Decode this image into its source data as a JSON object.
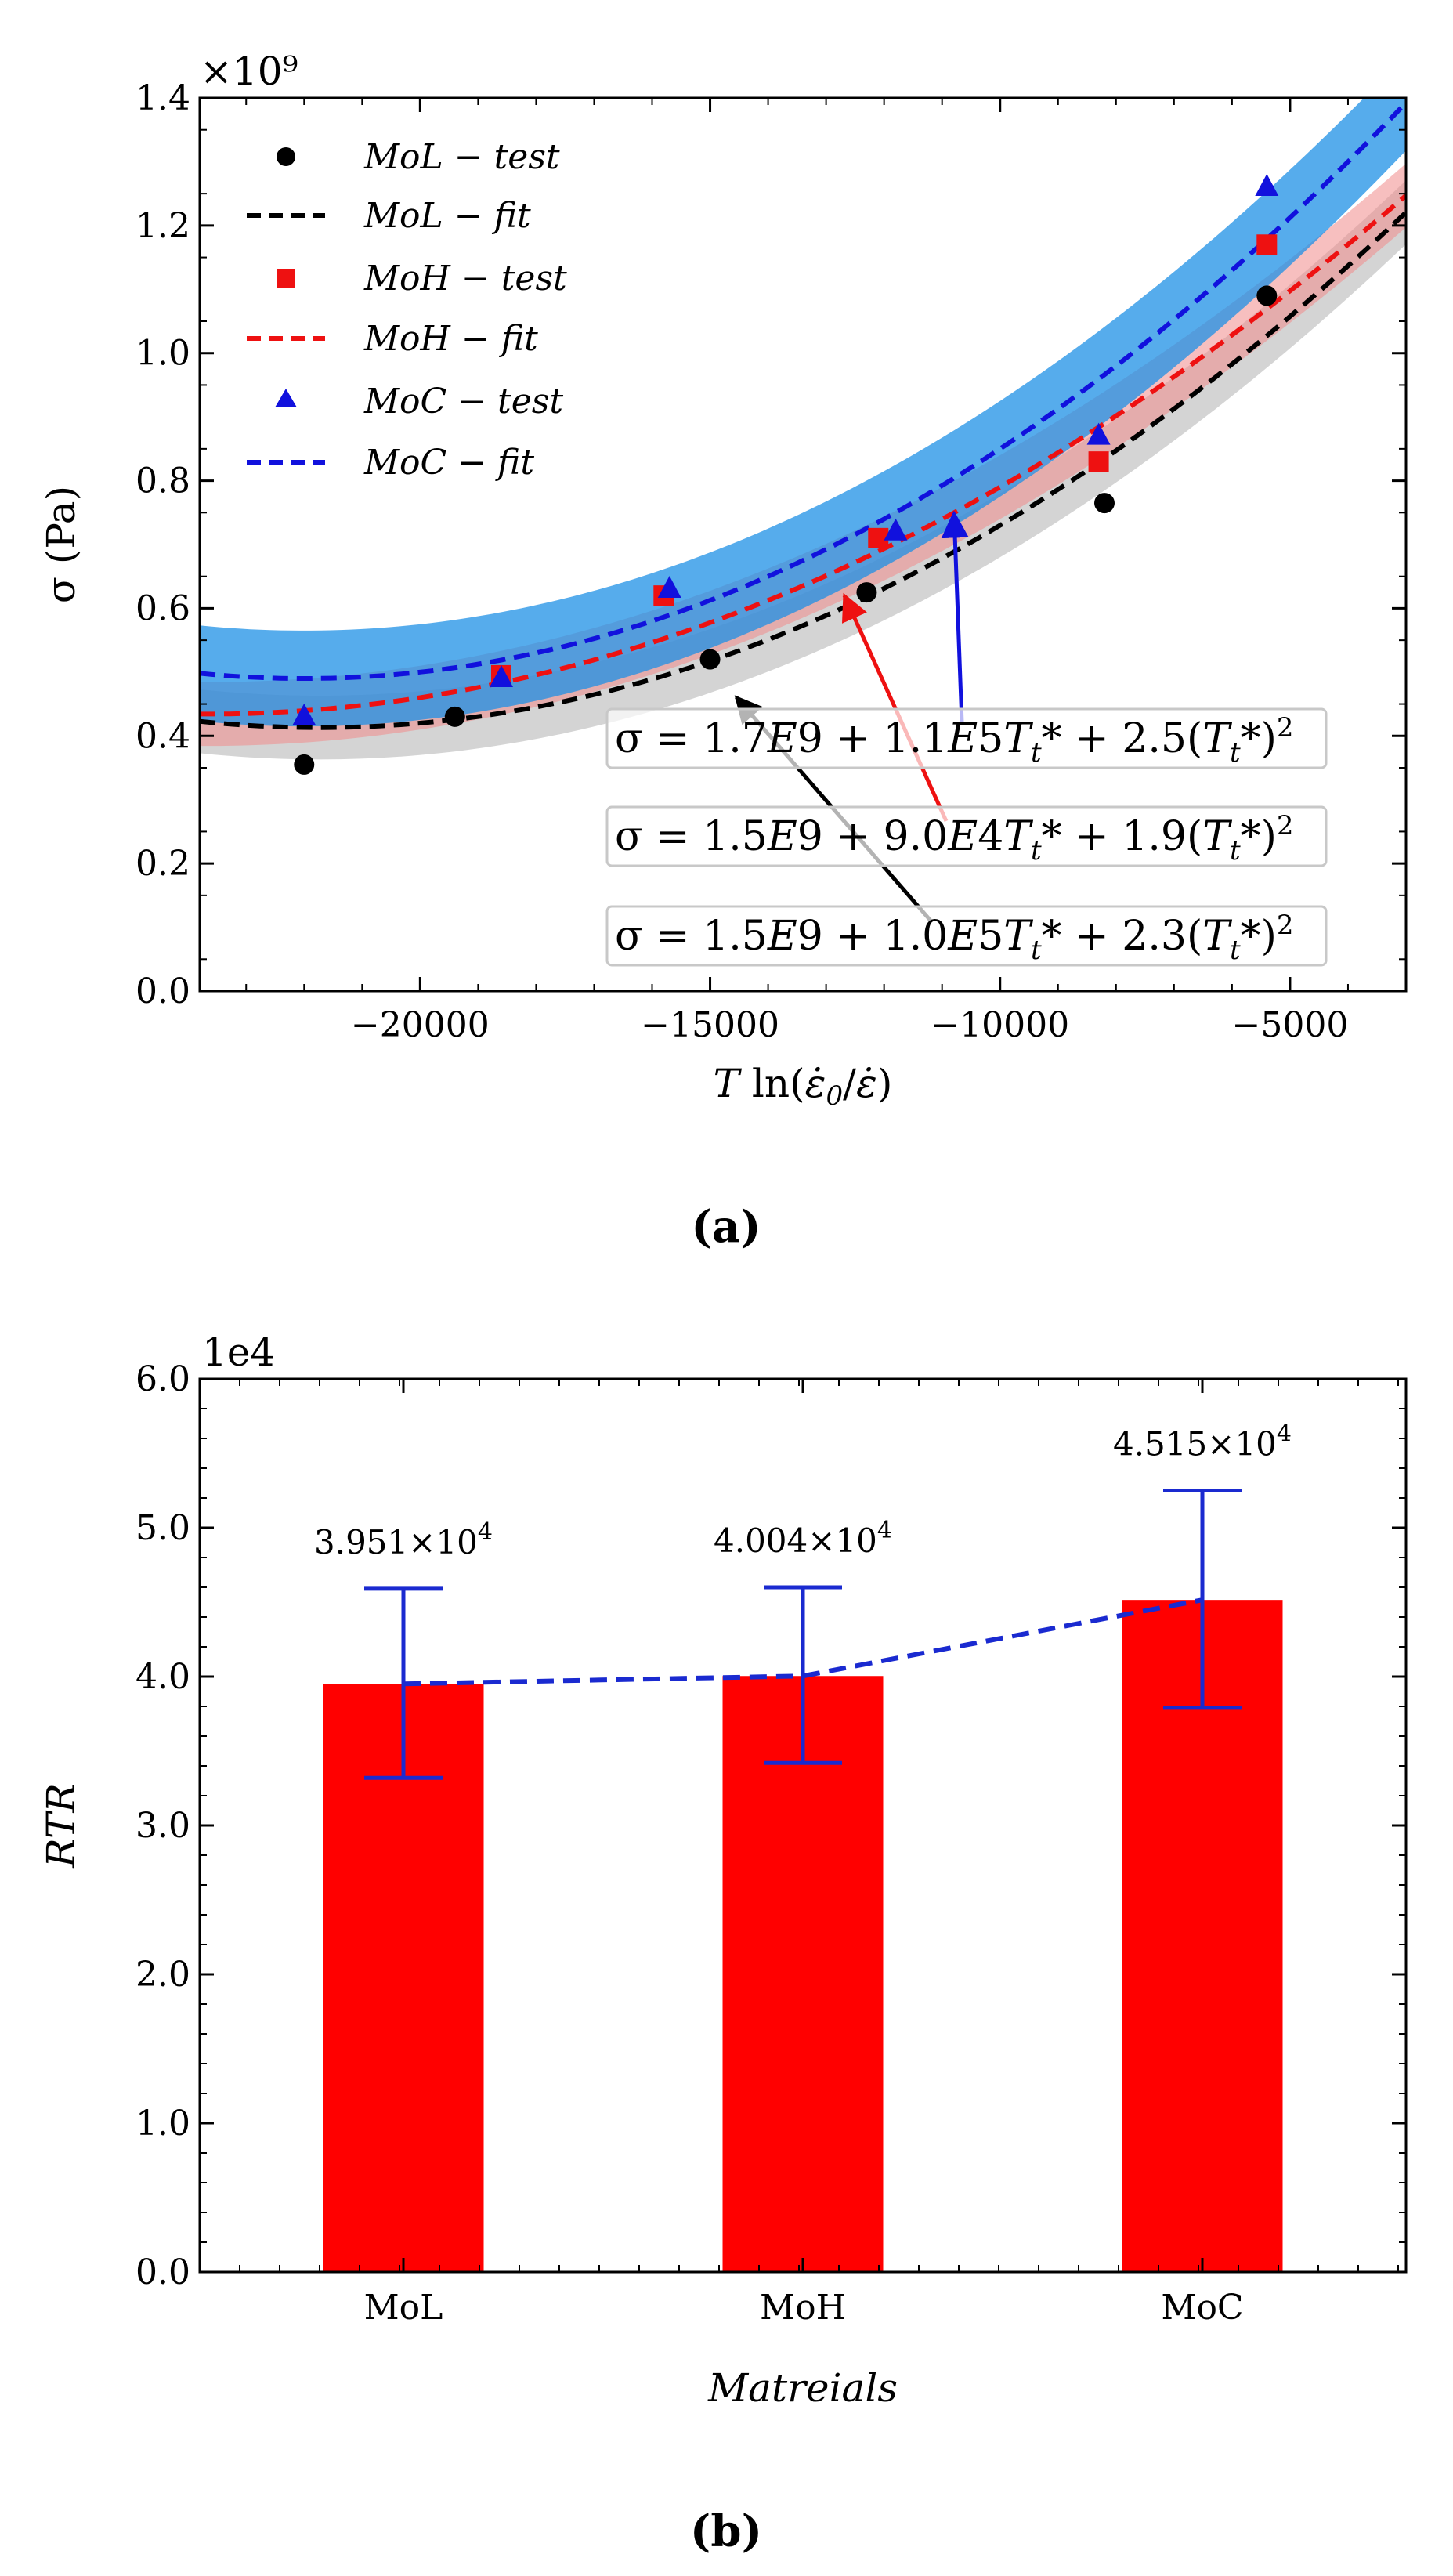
{
  "chart_data": [
    {
      "type": "scatter",
      "panel_label": "(a)",
      "xlabel": "T ln(ε̇0/ε̇)",
      "ylabel": "σ (Pa)",
      "y_multiplier": "×10⁹",
      "xlim": [
        -23800,
        -3000
      ],
      "ylim": [
        0.0,
        1.4
      ],
      "xticks": [
        "−20000",
        "−15000",
        "−10000",
        "−5000"
      ],
      "yticks": [
        "0.0",
        "0.2",
        "0.4",
        "0.6",
        "0.8",
        "1.0",
        "1.2",
        "1.4"
      ],
      "legend": [
        {
          "label": "MoL − test",
          "marker": "circle",
          "color": "#000000"
        },
        {
          "label": "MoL − fit",
          "marker": "dash",
          "color": "#000000"
        },
        {
          "label": "MoH − test",
          "marker": "square",
          "color": "#ee1111"
        },
        {
          "label": "MoH − fit",
          "marker": "dash",
          "color": "#ee1111"
        },
        {
          "label": "MoC − test",
          "marker": "triangle",
          "color": "#1111dd"
        },
        {
          "label": "MoC − fit",
          "marker": "dash",
          "color": "#1111dd"
        }
      ],
      "series": [
        {
          "name": "MoL − test",
          "color": "#000000",
          "x": [
            -22000,
            -19400,
            -15000,
            -12300,
            -8200,
            -5400
          ],
          "y": [
            0.355,
            0.43,
            0.52,
            0.625,
            0.765,
            1.09
          ]
        },
        {
          "name": "MoH − test",
          "color": "#ee1111",
          "x": [
            -18600,
            -15800,
            -12100,
            -8300,
            -5400
          ],
          "y": [
            0.495,
            0.62,
            0.71,
            0.83,
            1.17
          ]
        },
        {
          "name": "MoC − test",
          "color": "#1111dd",
          "x": [
            -22000,
            -18600,
            -15700,
            -11800,
            -8300,
            -5400
          ],
          "y": [
            0.43,
            0.49,
            0.63,
            0.72,
            0.87,
            1.26
          ]
        }
      ],
      "fits": [
        {
          "name": "MoL − fit",
          "color": "#000000",
          "band": "#b0b0b0",
          "a": 1.5,
          "b": 1.0,
          "c": 2.3
        },
        {
          "name": "MoH − fit",
          "color": "#ee1111",
          "band": "#f08a8a",
          "a": 1.5,
          "b": 0.9,
          "c": 1.9
        },
        {
          "name": "MoC − fit",
          "color": "#1111dd",
          "band": "#1e90e6",
          "a": 1.7,
          "b": 1.1,
          "c": 2.5
        }
      ],
      "annotations": [
        {
          "text": "σ = 1.7E9 + 1.1E5T*t + 2.5(T*t)²",
          "eq": [
            "σ = 1.7",
            "E",
            "9 + 1.1",
            "E",
            "5",
            "T",
            "t",
            "* + 2.5(",
            "T",
            "t",
            "*)",
            "2"
          ],
          "arrow_color": "#1111dd",
          "target": [
            -11000,
            0.72
          ]
        },
        {
          "text": "σ = 1.5E9 + 9.0E4T*t + 1.9(T*t)²",
          "eq": [
            "σ = 1.5",
            "E",
            "9 + 9.0",
            "E",
            "4",
            "T",
            "t",
            "* + 1.9(",
            "T",
            "t",
            "*)",
            "2"
          ],
          "arrow_color": "#ee1111",
          "target": [
            -12700,
            0.615
          ]
        },
        {
          "text": "σ = 1.5E9 + 1.0E5T*t + 2.3(T*t)²",
          "eq": [
            "σ = 1.5",
            "E",
            "9 + 1.0",
            "E",
            "5",
            "T",
            "t",
            "* + 2.3(",
            "T",
            "t",
            "*)",
            "2"
          ],
          "arrow_color": "#000000",
          "target": [
            -14800,
            0.49
          ]
        }
      ]
    },
    {
      "type": "bar",
      "panel_label": "(b)",
      "xlabel": "Matreials",
      "ylabel": "RTR",
      "y_multiplier": "1e4",
      "categories": [
        "MoL",
        "MoH",
        "MoC"
      ],
      "values": [
        3.951,
        4.004,
        4.515
      ],
      "value_labels": [
        {
          "mant": "3.951×10",
          "exp": "4"
        },
        {
          "mant": "4.004×10",
          "exp": "4"
        },
        {
          "mant": "4.515×10",
          "exp": "4"
        }
      ],
      "error_low": [
        3.32,
        3.42,
        3.79
      ],
      "error_high": [
        4.59,
        4.6,
        5.25
      ],
      "ylim": [
        0.0,
        6.0
      ],
      "yticks": [
        "0.0",
        "1.0",
        "2.0",
        "3.0",
        "4.0",
        "5.0",
        "6.0"
      ],
      "bar_color": "#ff0000",
      "line_color": "#1a2ad0"
    }
  ]
}
